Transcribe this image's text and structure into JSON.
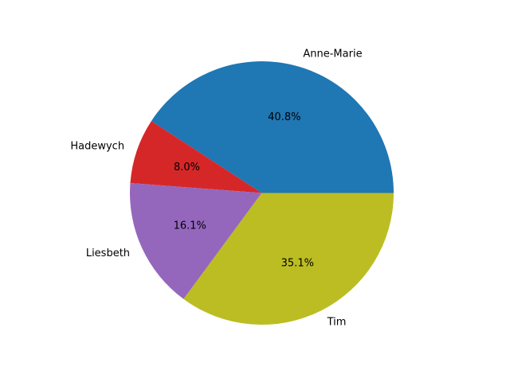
{
  "chart_data": {
    "type": "pie",
    "start_angle_deg": 0,
    "direction": "counterclockwise",
    "slices": [
      {
        "label": "Anne-Marie",
        "value": 40.8,
        "pct_label": "40.8%",
        "color": "#1f77b4"
      },
      {
        "label": "Hadewych",
        "value": 8.0,
        "pct_label": "8.0%",
        "color": "#d62728"
      },
      {
        "label": "Liesbeth",
        "value": 16.1,
        "pct_label": "16.1%",
        "color": "#9467bd"
      },
      {
        "label": "Tim",
        "value": 35.1,
        "pct_label": "35.1%",
        "color": "#bcbd22"
      }
    ]
  }
}
